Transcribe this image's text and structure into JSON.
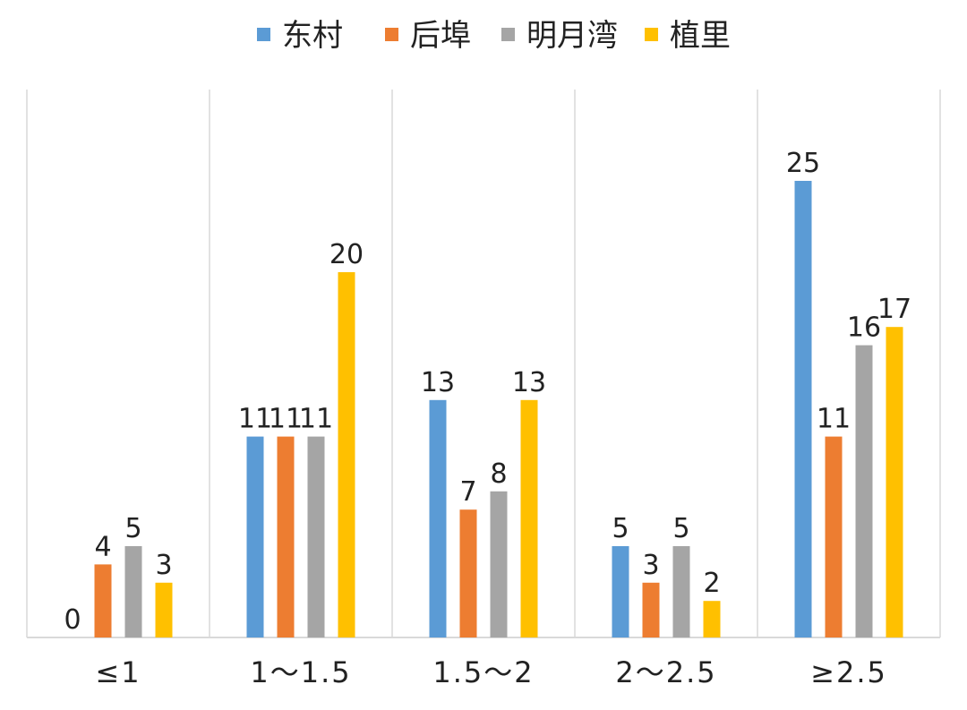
{
  "chart_data": {
    "type": "bar",
    "categories": [
      "≤1",
      "1～1.5",
      "1.5～2",
      "2～2.5",
      "≥2.5"
    ],
    "series": [
      {
        "name": "东村",
        "color": "#5B9BD5",
        "values": [
          0,
          11,
          13,
          5,
          25
        ]
      },
      {
        "name": "后埠",
        "color": "#ED7D31",
        "values": [
          4,
          11,
          7,
          3,
          11
        ]
      },
      {
        "name": "明月湾",
        "color": "#A5A5A5",
        "values": [
          5,
          11,
          8,
          5,
          16
        ]
      },
      {
        "name": "植里",
        "color": "#FFC000",
        "values": [
          3,
          20,
          13,
          2,
          17
        ]
      }
    ],
    "ylim": [
      0,
      30
    ],
    "grid": "vertical separators between categories",
    "legend_position": "top-center",
    "data_labels": true
  }
}
